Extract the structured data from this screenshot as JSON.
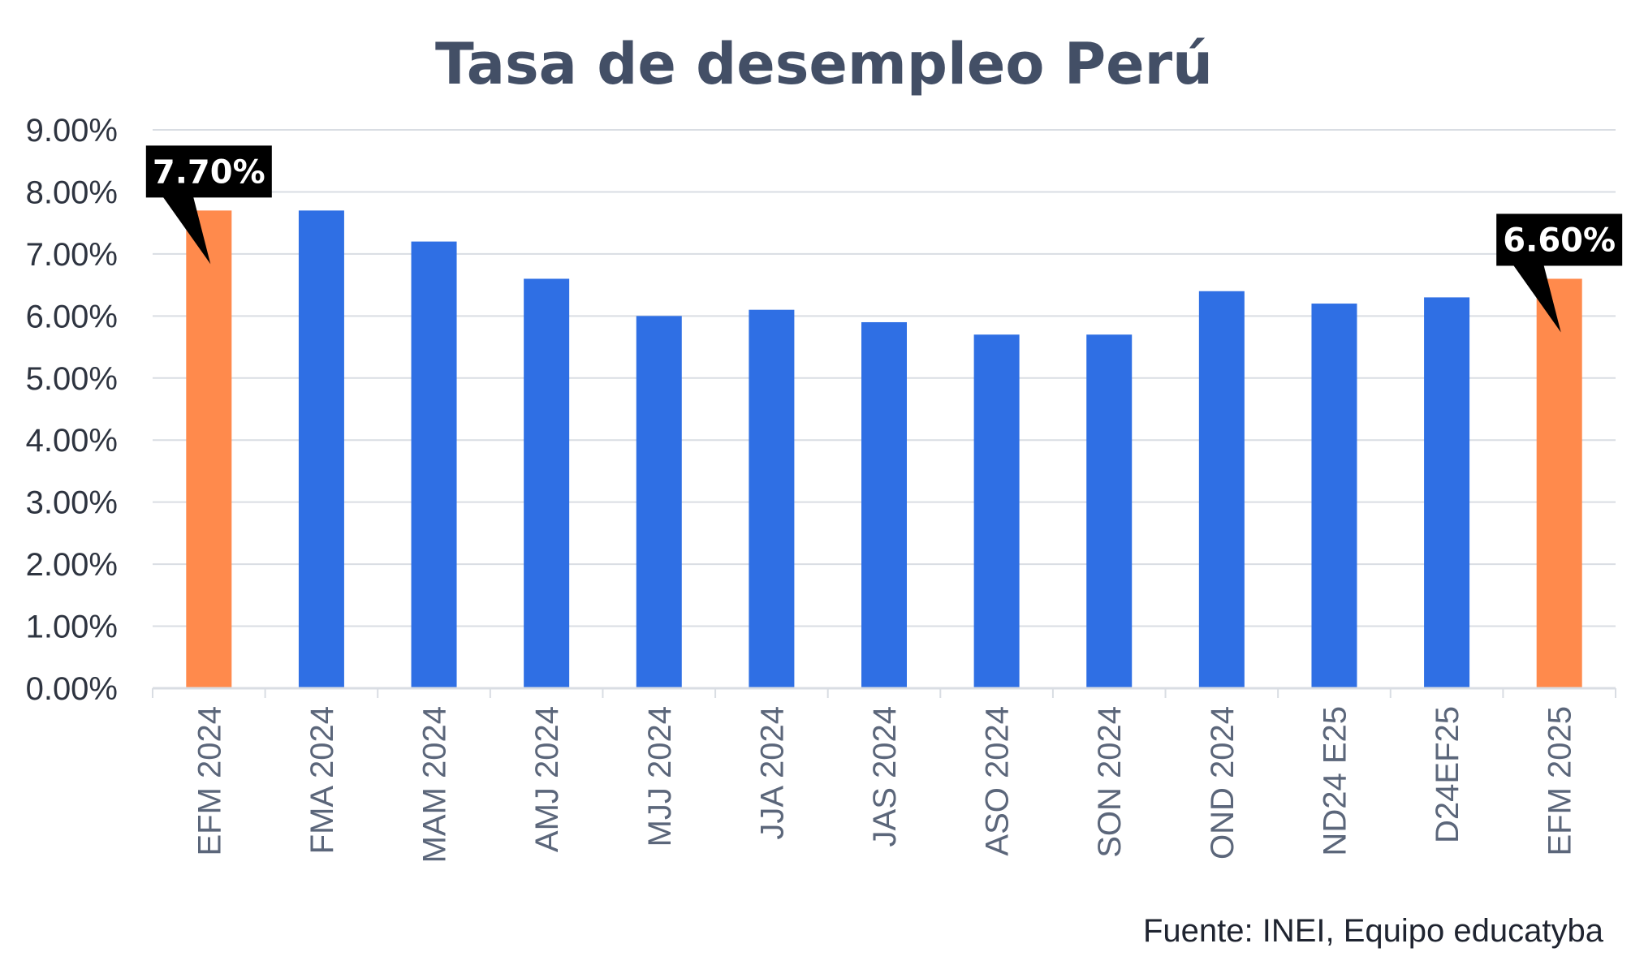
{
  "chart_data": {
    "type": "bar",
    "title": "Tasa de desempleo Perú",
    "categories": [
      "EFM 2024",
      "FMA 2024",
      "MAM 2024",
      "AMJ 2024",
      "MJJ 2024",
      "JJA 2024",
      "JAS 2024",
      "ASO 2024",
      "SON 2024",
      "OND 2024",
      "ND24 E25",
      "D24EF25",
      "EFM 2025"
    ],
    "values": [
      7.7,
      7.7,
      7.2,
      6.6,
      6.0,
      6.1,
      5.9,
      5.7,
      5.7,
      6.4,
      6.2,
      6.3,
      6.6
    ],
    "unit": "%",
    "ylim": [
      0,
      9
    ],
    "yticks": [
      "0.00%",
      "1.00%",
      "2.00%",
      "3.00%",
      "4.00%",
      "5.00%",
      "6.00%",
      "7.00%",
      "8.00%",
      "9.00%"
    ],
    "grid": true,
    "colors": {
      "default": "#2f6fe4",
      "highlight": "#ff8a4c",
      "grid": "#d9dde3",
      "callout_bg": "#000000"
    },
    "highlight_indices": [
      0,
      12
    ],
    "annotations": [
      {
        "index": 0,
        "text": "7.70%"
      },
      {
        "index": 12,
        "text": "6.60%"
      }
    ],
    "source": "Fuente: INEI, Equipo educatyba"
  }
}
